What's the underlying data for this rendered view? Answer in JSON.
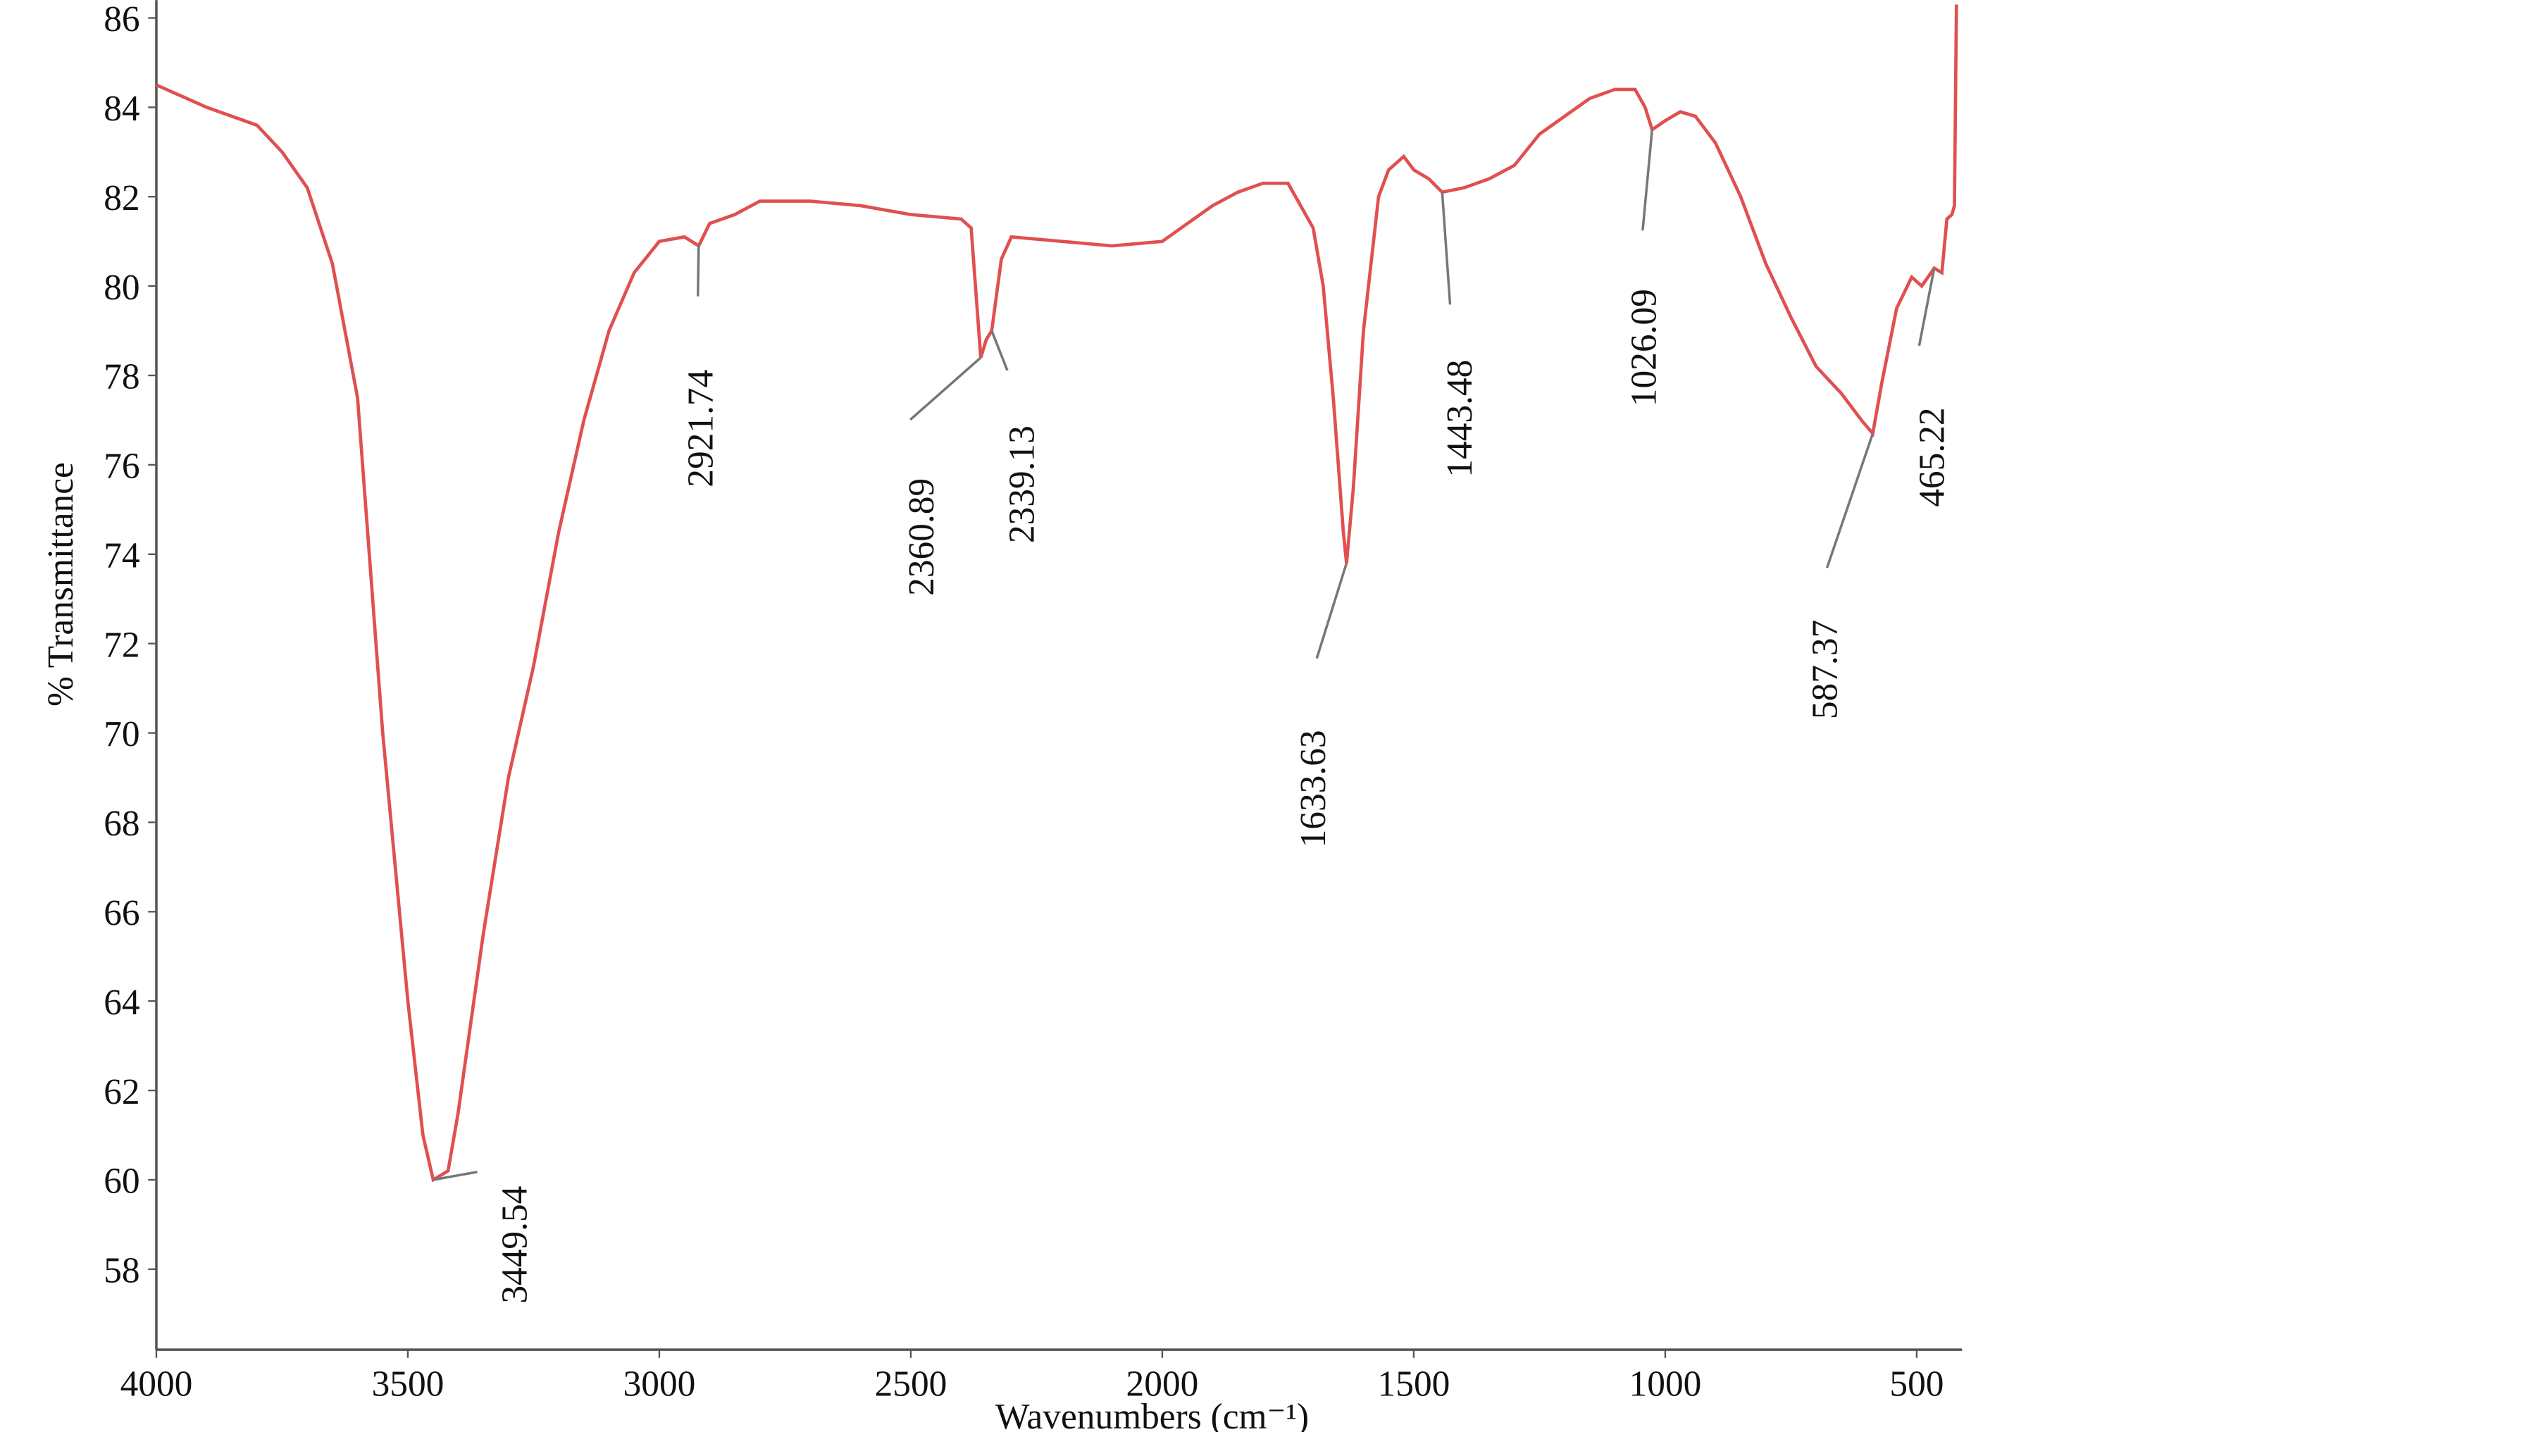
{
  "chart_data": {
    "type": "line",
    "y_label": "% Transmittance",
    "x_label": "Wavenumbers (cm⁻¹)",
    "color": "#e05050",
    "xlim": [
      4000,
      410
    ],
    "ylim": [
      56.2,
      86.4
    ],
    "xticks": [
      4000,
      3500,
      3000,
      2500,
      2000,
      1500,
      1000,
      500
    ],
    "yticks": [
      58,
      60,
      62,
      64,
      66,
      68,
      70,
      72,
      74,
      76,
      78,
      80,
      82,
      84,
      86
    ],
    "x": [
      4000,
      3900,
      3800,
      3750,
      3700,
      3650,
      3600,
      3550,
      3500,
      3470,
      3449.54,
      3420,
      3400,
      3350,
      3300,
      3250,
      3200,
      3150,
      3100,
      3050,
      3000,
      2950,
      2921.74,
      2900,
      2850,
      2800,
      2700,
      2600,
      2500,
      2400,
      2380,
      2360.89,
      2350,
      2339.13,
      2320,
      2300,
      2200,
      2100,
      2000,
      1900,
      1850,
      1800,
      1750,
      1700,
      1680,
      1660,
      1640,
      1633.63,
      1620,
      1600,
      1570,
      1550,
      1520,
      1500,
      1470,
      1443.48,
      1400,
      1350,
      1300,
      1250,
      1200,
      1150,
      1100,
      1060,
      1040,
      1026.09,
      1000,
      970,
      940,
      900,
      850,
      800,
      750,
      700,
      650,
      610,
      587.37,
      570,
      540,
      510,
      490,
      465.22,
      450,
      440,
      430,
      425,
      421
    ],
    "values": [
      84.5,
      84.0,
      83.6,
      83.0,
      82.2,
      80.5,
      77.5,
      70,
      64,
      61,
      60.0,
      60.2,
      61.5,
      65.5,
      69,
      71.5,
      74.5,
      77,
      79,
      80.3,
      81.0,
      81.1,
      80.9,
      81.4,
      81.6,
      81.9,
      81.9,
      81.8,
      81.6,
      81.5,
      81.3,
      78.4,
      78.8,
      79.0,
      80.6,
      81.1,
      81.0,
      80.9,
      81.0,
      81.8,
      82.1,
      82.3,
      82.3,
      81.3,
      80,
      77.5,
      74.5,
      73.8,
      75.5,
      79,
      82,
      82.6,
      82.9,
      82.6,
      82.4,
      82.1,
      82.2,
      82.4,
      82.7,
      83.4,
      83.8,
      84.2,
      84.4,
      84.4,
      84.0,
      83.5,
      83.7,
      83.9,
      83.8,
      83.2,
      82.0,
      80.5,
      79.3,
      78.2,
      77.6,
      77.0,
      76.7,
      77.8,
      79.5,
      80.2,
      80.0,
      80.4,
      80.3,
      81.5,
      81.6,
      81.8,
      86.3
    ],
    "annotations": [
      {
        "x": 3449.54,
        "y": 60.0
      },
      {
        "x": 2921.74,
        "y": 80.9
      },
      {
        "x": 2360.89,
        "y": 78.4
      },
      {
        "x": 2339.13,
        "y": 79.0
      },
      {
        "x": 1633.63,
        "y": 73.8
      },
      {
        "x": 1443.48,
        "y": 82.1
      },
      {
        "x": 1026.09,
        "y": 83.5
      },
      {
        "x": 587.37,
        "y": 76.7
      },
      {
        "x": 465.22,
        "y": 80.4
      }
    ]
  }
}
